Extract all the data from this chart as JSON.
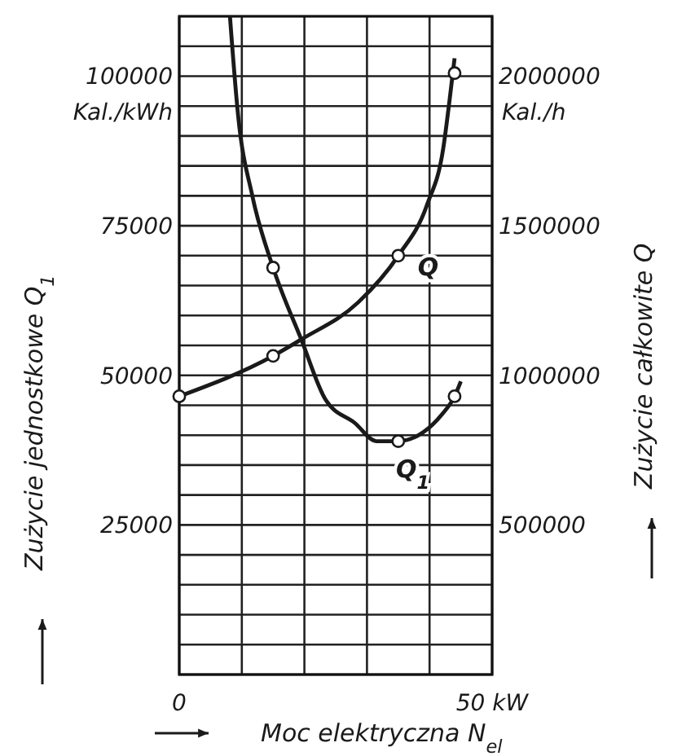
{
  "chart_data": {
    "type": "line",
    "xlabel": "Moc elektryczna N$_{el}$",
    "ylabel": "Zużycie jednostkowe Q$_{1}$",
    "y2label": "Zużycie całkowite Q",
    "annotations": [
      "Kal./kWh",
      "Kal./h"
    ],
    "xlim": [
      0,
      50
    ],
    "xticks": [
      {
        "value": 0,
        "label": "0"
      },
      {
        "value": 10,
        "label": null
      },
      {
        "value": 20,
        "label": null
      },
      {
        "value": 30,
        "label": null
      },
      {
        "value": 40,
        "label": null
      },
      {
        "value": 50,
        "label": "50 kW"
      }
    ],
    "ylim": [
      0,
      110000
    ],
    "yticks": [
      {
        "value": 0,
        "label": null
      },
      {
        "value": 5000,
        "label": null
      },
      {
        "value": 10000,
        "label": null
      },
      {
        "value": 15000,
        "label": null
      },
      {
        "value": 20000,
        "label": null
      },
      25000,
      {
        "value": 30000,
        "label": null
      },
      {
        "value": 35000,
        "label": null
      },
      {
        "value": 40000,
        "label": null
      },
      {
        "value": 45000,
        "label": null
      },
      50000,
      {
        "value": 55000,
        "label": null
      },
      {
        "value": 60000,
        "label": null
      },
      {
        "value": 65000,
        "label": null
      },
      {
        "value": 70000,
        "label": null
      },
      75000,
      {
        "value": 80000,
        "label": null
      },
      {
        "value": 85000,
        "label": null
      },
      {
        "value": 90000,
        "label": null
      },
      {
        "value": 95000,
        "label": null
      },
      100000,
      {
        "value": 105000,
        "label": null
      }
    ],
    "y2lim": [
      0,
      2200000
    ],
    "y2ticks": [
      500000,
      1000000,
      1500000,
      2000000
    ],
    "grid": true,
    "series": [
      {
        "name": "Q$_{1}$",
        "marker": "none",
        "color": "#1a1a1a",
        "x": [
          8.1,
          9.4,
          11.7,
          15,
          19.5,
          23.4,
          28.1,
          31.5,
          35,
          39,
          42,
          44,
          45
        ],
        "values": [
          110000,
          93500,
          79900,
          68000,
          56000,
          45900,
          42000,
          39000,
          39000,
          40500,
          43500,
          46500,
          49000
        ]
      },
      {
        "type": "scatter",
        "marker": "circle",
        "color": "#1a1a1a",
        "x": [
          15,
          35,
          44
        ],
        "values": [
          68000,
          39000,
          46500
        ]
      },
      {
        "name": "Q",
        "marker": "none",
        "axis": "y2",
        "color": "#1a1a1a",
        "x": [
          0,
          15,
          19.5,
          28.6,
          35,
          39.6,
          42.2,
          43.2,
          44
        ],
        "values": [
          930000,
          1065000,
          1120000,
          1244000,
          1400000,
          1570000,
          1760000,
          1920000,
          2060000
        ]
      },
      {
        "type": "scatter",
        "marker": "circle",
        "axis": "y2",
        "color": "#1a1a1a",
        "x": [
          0,
          15,
          35,
          44
        ],
        "values": [
          930000,
          1065000,
          1400000,
          2010000
        ]
      }
    ]
  }
}
